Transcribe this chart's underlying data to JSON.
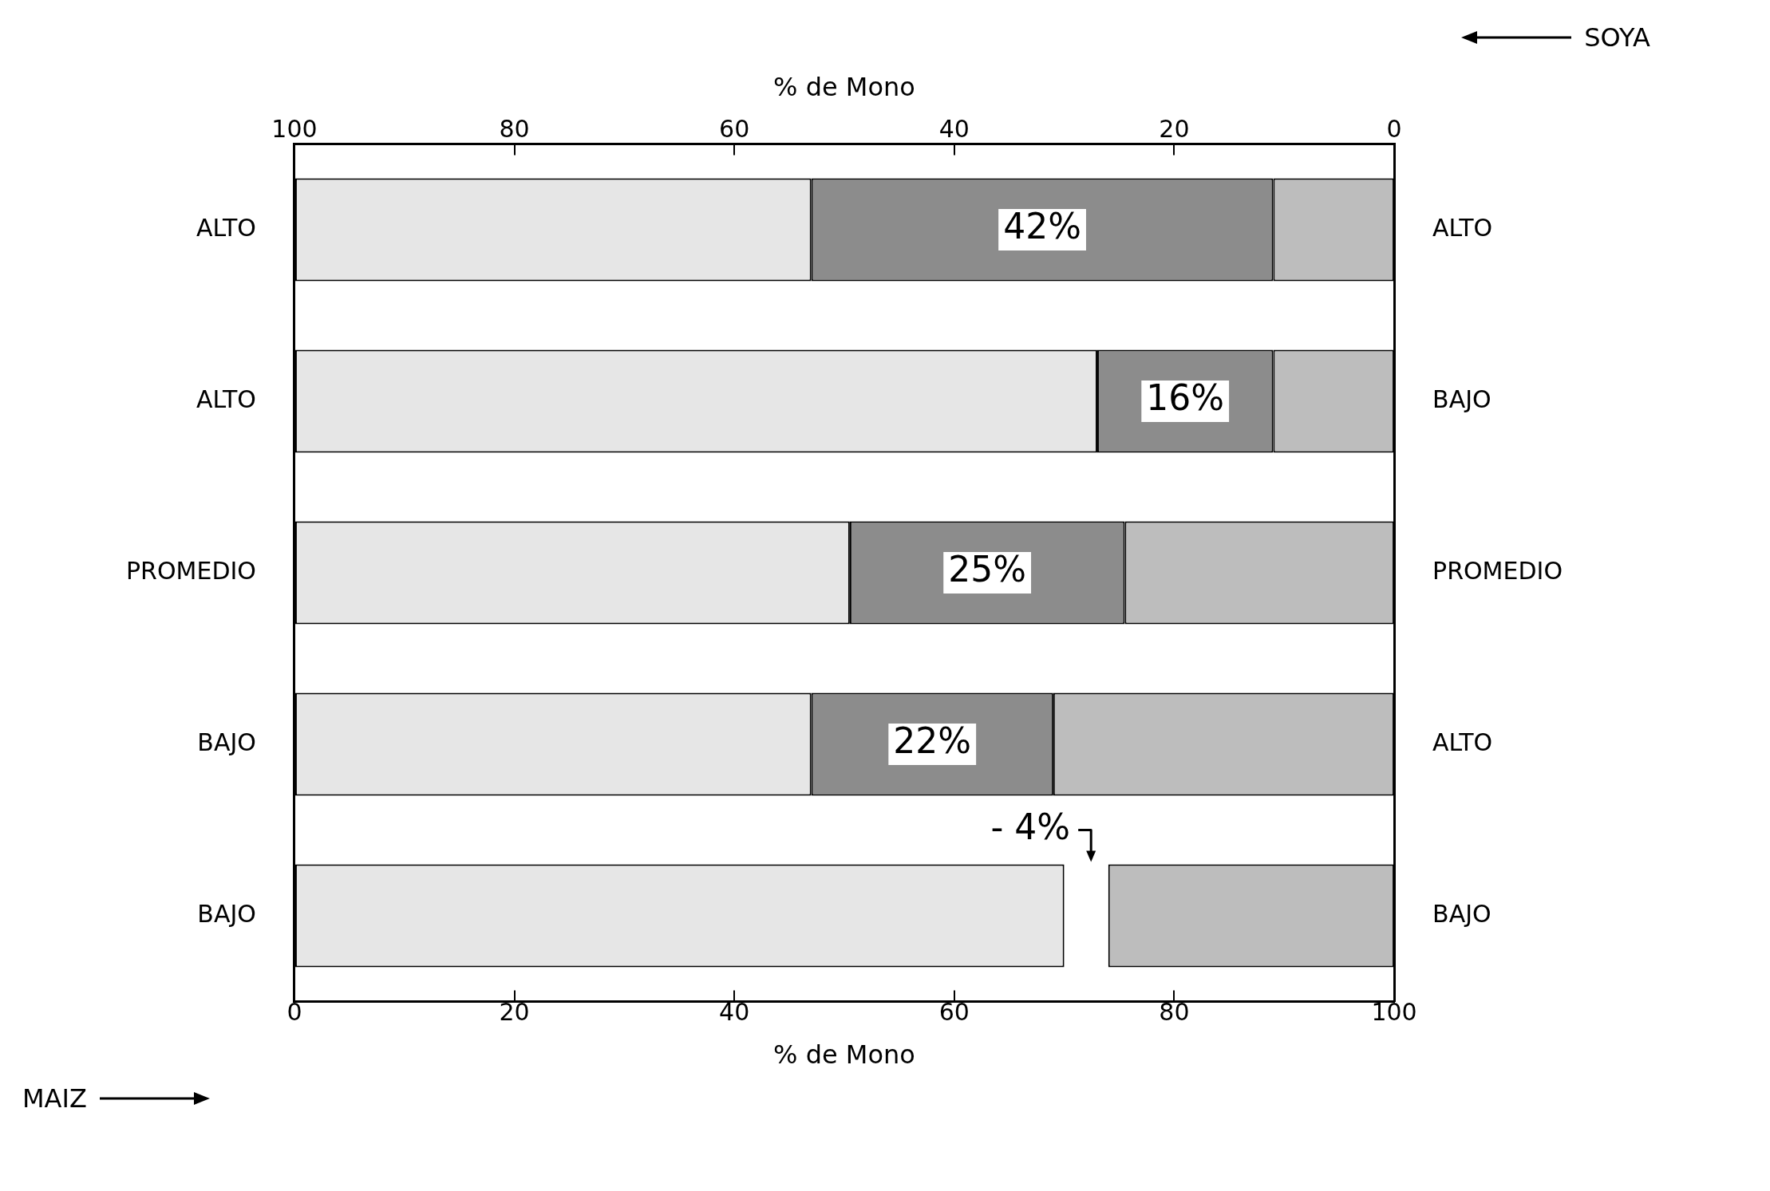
{
  "chart_data": {
    "type": "bar",
    "orientation": "horizontal",
    "stacked": false,
    "categories": [
      "ALTO",
      "ALTO",
      "PROMEDIO",
      "BAJO",
      "BAJO"
    ],
    "y2_categories": [
      "ALTO",
      "BAJO",
      "PROMEDIO",
      "ALTO",
      "BAJO"
    ],
    "series": [
      {
        "color": "#e6e6e6",
        "base": [
          0,
          0,
          0,
          0,
          0
        ],
        "values": [
          47,
          73,
          50.5,
          47,
          70
        ]
      },
      {
        "color": "#8c8c8c",
        "base": [
          47,
          73,
          50.5,
          47,
          null
        ],
        "values": [
          42,
          16,
          25,
          22,
          null
        ],
        "value_labels": [
          "42%",
          "16%",
          "25%",
          "22%",
          null
        ]
      },
      {
        "color": "#bdbdbd",
        "base": [
          89,
          89,
          75.5,
          69,
          74
        ],
        "values": [
          11,
          11,
          24.5,
          31,
          26
        ]
      }
    ],
    "xlabel": "% de Mono",
    "x2label": "% de Mono",
    "xlim": [
      0,
      100
    ],
    "xticks": [
      0,
      20,
      40,
      60,
      80,
      100
    ],
    "x2lim": [
      100,
      0
    ],
    "x2ticks": [
      100,
      80,
      60,
      40,
      20,
      0
    ],
    "grid": false,
    "legend": false,
    "annotations": [
      "MAIZ",
      "SOYA",
      "- 4%"
    ]
  }
}
